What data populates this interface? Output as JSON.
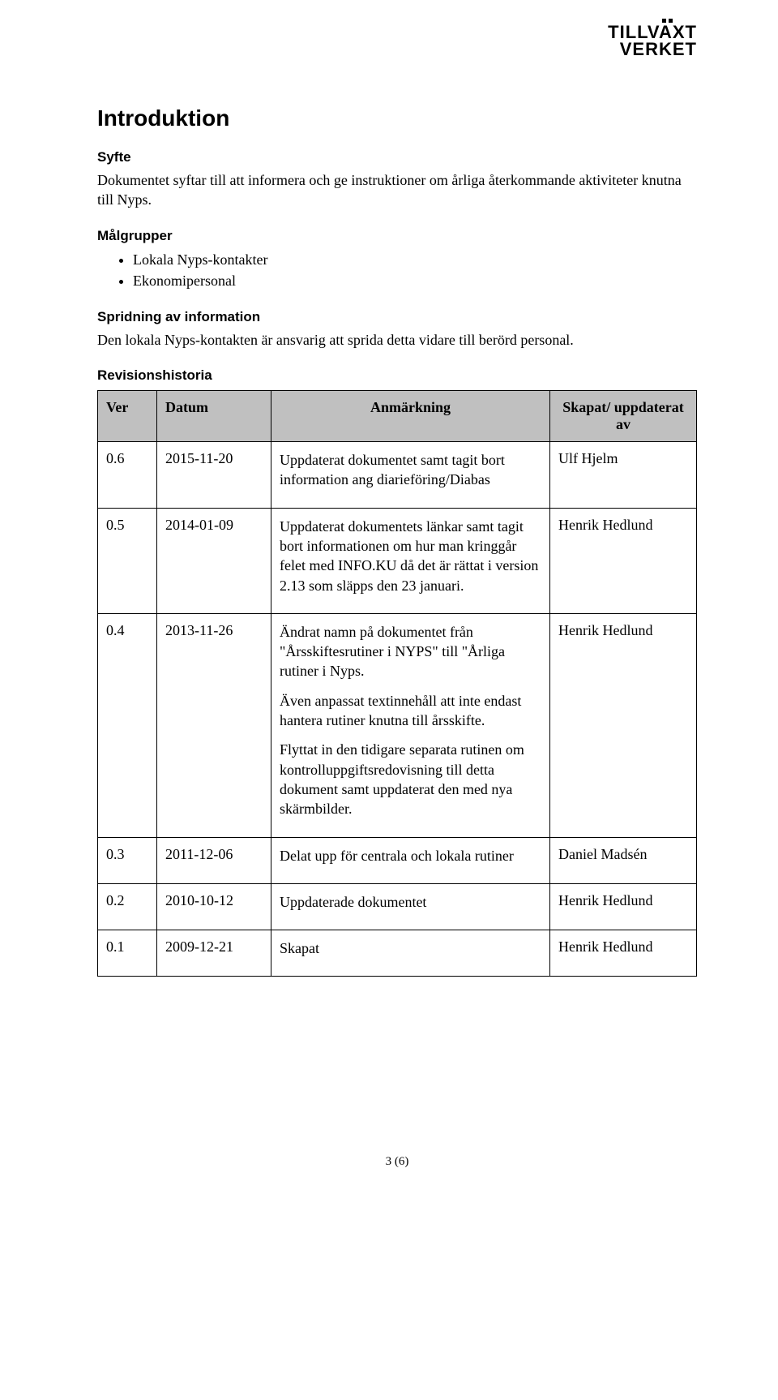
{
  "logo": {
    "line1": "TILLVAXT",
    "line2": "VERKET"
  },
  "headings": {
    "intro": "Introduktion",
    "syfte": "Syfte",
    "malgrupper": "Målgrupper",
    "spridning": "Spridning av information",
    "revision": "Revisionshistoria"
  },
  "text": {
    "syfte_body": "Dokumentet syftar till att informera och ge instruktioner om årliga återkommande aktiviteter knutna till Nyps.",
    "spridning_body": "Den lokala Nyps-kontakten är ansvarig att sprida detta vidare till berörd personal."
  },
  "malgrupper_items": [
    "Lokala Nyps-kontakter",
    "Ekonomipersonal"
  ],
  "table": {
    "headers": {
      "ver": "Ver",
      "datum": "Datum",
      "anm": "Anmärkning",
      "skapat": "Skapat/ uppdaterat av"
    },
    "rows": [
      {
        "ver": "0.6",
        "datum": "2015-11-20",
        "anm": [
          "Uppdaterat dokumentet samt tagit bort information ang diarieföring/Diabas"
        ],
        "skapat": "Ulf Hjelm"
      },
      {
        "ver": "0.5",
        "datum": "2014-01-09",
        "anm": [
          "Uppdaterat dokumentets länkar samt tagit bort informationen om hur man kringgår felet med INFO.KU då det är rättat i version 2.13 som släpps den 23 januari."
        ],
        "skapat": "Henrik Hedlund"
      },
      {
        "ver": "0.4",
        "datum": "2013-11-26",
        "anm": [
          "Ändrat namn på dokumentet från \"Årsskiftesrutiner i NYPS\" till \"Årliga rutiner i Nyps.",
          "Även anpassat textinnehåll att inte endast hantera rutiner knutna till årsskifte.",
          "Flyttat in den tidigare separata rutinen om kontrolluppgiftsredovisning till detta dokument samt uppdaterat den med nya skärmbilder."
        ],
        "skapat": "Henrik Hedlund"
      },
      {
        "ver": "0.3",
        "datum": "2011-12-06",
        "anm": [
          "Delat upp för centrala och lokala rutiner"
        ],
        "skapat": "Daniel Madsén"
      },
      {
        "ver": "0.2",
        "datum": "2010-10-12",
        "anm": [
          "Uppdaterade dokumentet"
        ],
        "skapat": "Henrik Hedlund"
      },
      {
        "ver": "0.1",
        "datum": "2009-12-21",
        "anm": [
          "Skapat"
        ],
        "skapat": "Henrik Hedlund"
      }
    ]
  },
  "footer": "3 (6)"
}
